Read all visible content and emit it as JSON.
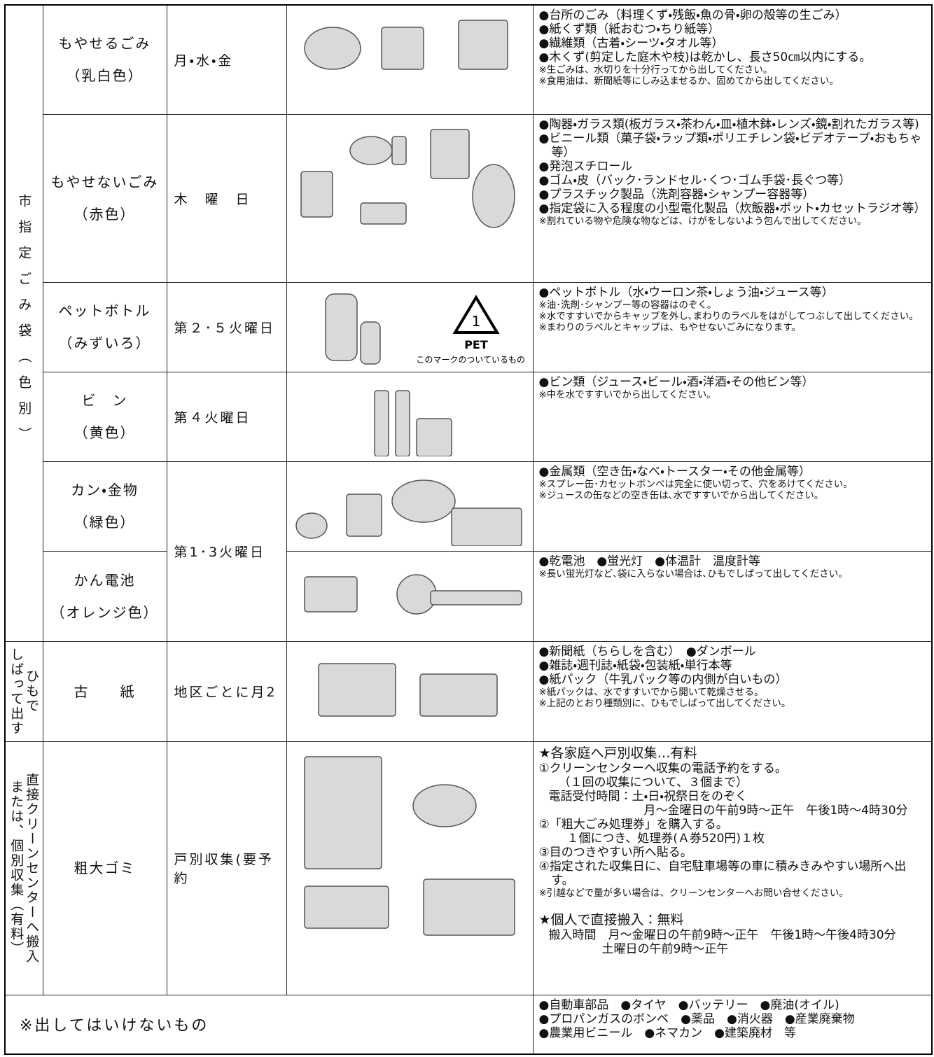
{
  "groups": [
    {
      "label": [
        "市指定ごみ袋（色別）"
      ]
    },
    {
      "label": [
        "ひもで",
        "しばって出す"
      ]
    },
    {
      "label": [
        "直接クリーンセンターへ搬入",
        "または、個別収集（有料）"
      ]
    }
  ],
  "rows": [
    {
      "name": "もやせるごみ",
      "color": "（乳白色）",
      "schedule": "月・水・金",
      "items": [
        "●台所のごみ（料理くず・残飯・魚の骨・卵の殻等の生ごみ）",
        "●紙くず類（紙おむつ・ちり紙等）",
        "●繊維類（古着・シーツ・タオル等）",
        "●木くず(剪定した庭木や枝)は乾かし、長さ50㎝以内にする。"
      ],
      "notes": [
        "※生ごみは、水切りを十分行ってから出してください。",
        "※食用油は、新聞紙等にしみ込ませるか、固めてから出してください。"
      ]
    },
    {
      "name": "もやせないごみ",
      "color": "（赤色）",
      "schedule": "木　曜　日",
      "items": [
        "●陶器・ガラス類(板ガラス・茶わん・皿・植木鉢・レンズ・鏡・割れたガラス等)",
        "●ビニール類（菓子袋・ラップ類・ポリエチレン袋・ビデオテープ・おもちゃ等）",
        "●発泡スチロール",
        "●ゴム・皮（バック･ランドセル･くつ･ゴム手袋･長ぐつ等）",
        "●プラスチック製品（洗剤容器・シャンプー容器等）",
        "●指定袋に入る程度の小型電化製品（炊飯器・ポット・カセットラジオ等）"
      ],
      "notes": [
        "※割れている物や危険な物などは、けがをしないよう包んで出してください。"
      ]
    },
    {
      "name": "ペットボトル",
      "color": "（みずいろ）",
      "schedule": "第２･５火曜日",
      "pet_mark": {
        "number": "1",
        "label": "PET",
        "caption": "このマークのついているもの"
      },
      "items": [
        "●ペットボトル（水・ウーロン茶・しょう油・ジュース等）"
      ],
      "notes": [
        "※油･洗剤･シャンプー等の容器はのぞく。",
        "※水ですすいでからキャップを外し､まわりのラベルをはがしてつぶして出してください。",
        "※まわりのラベルとキャップは、もやせないごみになります。"
      ]
    },
    {
      "name": "ビ　ン",
      "color": "（黄色）",
      "schedule": "第４火曜日",
      "items": [
        "●ビン類（ジュース・ビール・酒・洋酒・その他ビン等）"
      ],
      "notes": [
        "※中を水ですすいでから出してください。"
      ]
    },
    {
      "name": "カン・金物",
      "color": "（緑色）",
      "schedule": "第1･3火曜日",
      "items": [
        "●金属類（空き缶・なべ・トースター・その他金属等）"
      ],
      "notes": [
        "※スプレー缶･カセットボンベは完全に使い切って、穴をあけてください。",
        "※ジュースの缶などの空き缶は､水ですすいでから出してください。"
      ]
    },
    {
      "name": "かん電池",
      "color": "（オレンジ色）",
      "items": [
        "●乾電池　●蛍光灯　●体温計　温度計等"
      ],
      "notes": [
        "※長い蛍光灯など､袋に入らない場合は､ひもでしばって出してください。"
      ]
    },
    {
      "name": "古　　紙",
      "schedule": "地区ごとに月2",
      "items": [
        "●新聞紙（ちらしを含む）　●ダンボール",
        "●雑誌・週刊誌・紙袋・包装紙・単行本等",
        "●紙パック（牛乳パック等の内側が白いもの）"
      ],
      "notes": [
        "※紙パックは、水ですすいでから開いて乾燥させる。",
        "※上記のとおり種類別に、ひもでしばって出してください。"
      ]
    },
    {
      "name": "粗大ゴミ",
      "schedule": "戸別収集(要予約",
      "items": [
        "★各家庭へ戸別収集…有料",
        "①クリーンセンターへ収集の電話予約をする。",
        "（１回の収集について、３個まで）",
        "電話受付時間：土・日・祝祭日をのぞく",
        "月～金曜日の午前9時～正午　午後1時～4時30分",
        "②「粗大ごみ処理券」を購入する。",
        "１個につき、処理券(Ａ券520円)１枚",
        "③目のつきやすい所へ貼る。",
        "④指定された収集日に、自宅駐車場等の車に積みきみやすい場所へ出す。",
        "※引越などで量が多い場合は、クリーンセンターへお問い合せください。",
        "★個人で直接搬入：無料",
        "搬入時間　月～金曜日の午前9時～正午　午後1時～午後4時30分",
        "土曜日の午前9時～正午"
      ]
    }
  ],
  "footer": {
    "title": "※出してはいけないもの",
    "items": [
      "●自動車部品　●タイヤ　●バッテリー　●廃油(オイル)",
      "●プロパンガスのボンベ　●薬品　●消火器　●産業廃棄物",
      "●農業用ビニール　●ネマカン　●建築廃材　等"
    ]
  }
}
